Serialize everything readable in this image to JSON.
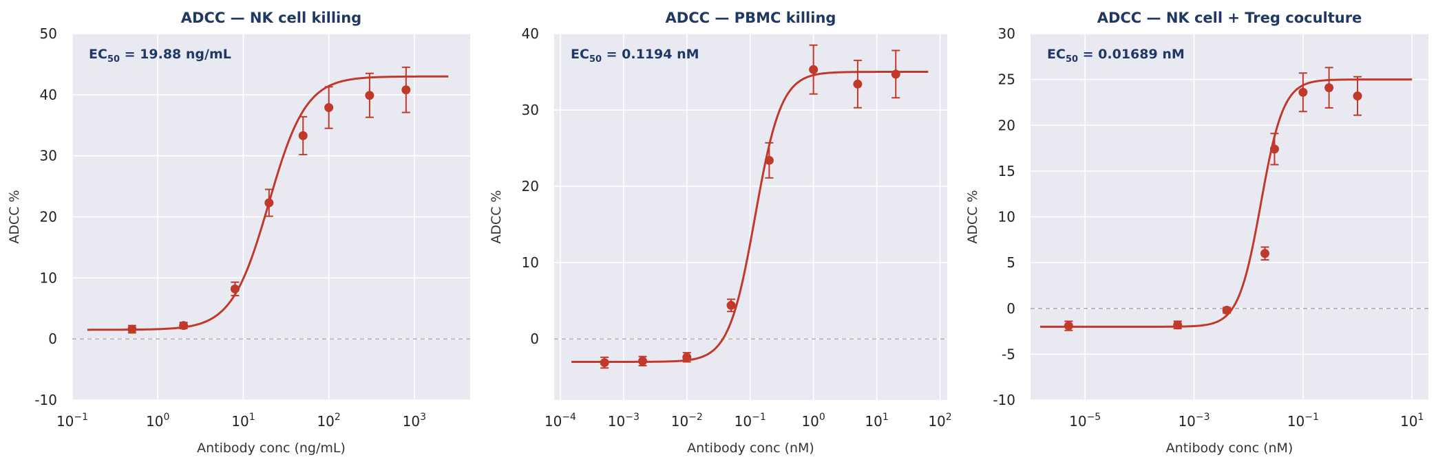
{
  "chart_data": [
    {
      "type": "scatter",
      "title": "ADCC — NK cell killing",
      "xlabel": "Antibody conc (ng/mL)",
      "ylabel": "ADCC %",
      "xscale": "log",
      "xlim": [
        0.1,
        4500
      ],
      "ylim": [
        -10,
        50
      ],
      "xticks": [
        0.1,
        1,
        10,
        100,
        1000
      ],
      "xtick_labels": [
        "10^-1",
        "10^0",
        "10^1",
        "10^2",
        "10^3"
      ],
      "yticks": [
        -10,
        0,
        10,
        20,
        30,
        40,
        50
      ],
      "ytick_labels": [
        "-10",
        "0",
        "10",
        "20",
        "30",
        "40",
        "50"
      ],
      "annotation": {
        "label": "EC",
        "subscript": "50",
        "text": " = 19.88 ng/mL"
      },
      "ec50": 19.88,
      "fit": {
        "bottom": 1.5,
        "top": 43,
        "hill": 2.0,
        "x_range": [
          0.15,
          2500
        ]
      },
      "reference_line_y": 0,
      "grid": true,
      "color": "#c0392b",
      "points": [
        {
          "x": 0.5,
          "y": 1.6,
          "err": 0.6
        },
        {
          "x": 2,
          "y": 2.2,
          "err": 0.5
        },
        {
          "x": 8,
          "y": 8.2,
          "err": 1.1
        },
        {
          "x": 20,
          "y": 22.3,
          "err": 2.2
        },
        {
          "x": 50,
          "y": 33.3,
          "err": 3.1
        },
        {
          "x": 100,
          "y": 37.9,
          "err": 3.4
        },
        {
          "x": 300,
          "y": 39.9,
          "err": 3.6
        },
        {
          "x": 800,
          "y": 40.8,
          "err": 3.7
        }
      ]
    },
    {
      "type": "scatter",
      "title": "ADCC — PBMC killing",
      "xlabel": "Antibody conc (nM)",
      "ylabel": "ADCC %",
      "xscale": "log",
      "xlim": [
        8e-05,
        130
      ],
      "ylim": [
        -8,
        40
      ],
      "xticks": [
        0.0001,
        0.001,
        0.01,
        0.1,
        1,
        10,
        100
      ],
      "xtick_labels": [
        "10^-4",
        "10^-3",
        "10^-2",
        "10^-1",
        "10^0",
        "10^1",
        "10^2"
      ],
      "yticks": [
        0,
        10,
        20,
        30,
        40
      ],
      "ytick_labels": [
        "0",
        "10",
        "20",
        "30",
        "40"
      ],
      "annotation": {
        "label": "EC",
        "subscript": "50",
        "text": " = 0.1194 nM"
      },
      "ec50": 0.1194,
      "fit": {
        "bottom": -3,
        "top": 35,
        "hill": 2.1,
        "x_range": [
          0.00015,
          65
        ]
      },
      "reference_line_y": 0,
      "grid": true,
      "color": "#c0392b",
      "points": [
        {
          "x": 0.0005,
          "y": -3.1,
          "err": 0.7
        },
        {
          "x": 0.002,
          "y": -2.9,
          "err": 0.6
        },
        {
          "x": 0.01,
          "y": -2.4,
          "err": 0.6
        },
        {
          "x": 0.05,
          "y": 4.4,
          "err": 0.8
        },
        {
          "x": 0.2,
          "y": 23.4,
          "err": 2.3
        },
        {
          "x": 1,
          "y": 35.3,
          "err": 3.2
        },
        {
          "x": 5,
          "y": 33.4,
          "err": 3.1
        },
        {
          "x": 20,
          "y": 34.7,
          "err": 3.1
        }
      ]
    },
    {
      "type": "scatter",
      "title": "ADCC — NK cell + Treg coculture",
      "xlabel": "Antibody conc (nM)",
      "ylabel": "ADCC %",
      "xscale": "log",
      "xlim": [
        1e-06,
        20
      ],
      "ylim": [
        -10,
        30
      ],
      "xticks": [
        1e-05,
        0.001,
        0.1,
        10
      ],
      "xtick_labels": [
        "10^-5",
        "10^-3",
        "10^-1",
        "10^1"
      ],
      "yticks": [
        -10,
        -5,
        0,
        5,
        10,
        15,
        20,
        25,
        30
      ],
      "ytick_labels": [
        "-10",
        "-5",
        "0",
        "5",
        "10",
        "15",
        "20",
        "25",
        "30"
      ],
      "annotation": {
        "label": "EC",
        "subscript": "50",
        "text": " = 0.01689 nM"
      },
      "ec50": 0.01689,
      "fit": {
        "bottom": -2,
        "top": 25,
        "hill": 2.1,
        "x_range": [
          1.5e-06,
          10
        ]
      },
      "reference_line_y": 0,
      "grid": true,
      "color": "#c0392b",
      "points": [
        {
          "x": 5e-06,
          "y": -1.9,
          "err": 0.5
        },
        {
          "x": 0.0005,
          "y": -1.8,
          "err": 0.4
        },
        {
          "x": 0.004,
          "y": -0.2,
          "err": 0.3
        },
        {
          "x": 0.02,
          "y": 6.0,
          "err": 0.7
        },
        {
          "x": 0.03,
          "y": 17.4,
          "err": 1.7
        },
        {
          "x": 0.1,
          "y": 23.6,
          "err": 2.1
        },
        {
          "x": 0.3,
          "y": 24.1,
          "err": 2.2
        },
        {
          "x": 1,
          "y": 23.2,
          "err": 2.1
        }
      ]
    }
  ]
}
